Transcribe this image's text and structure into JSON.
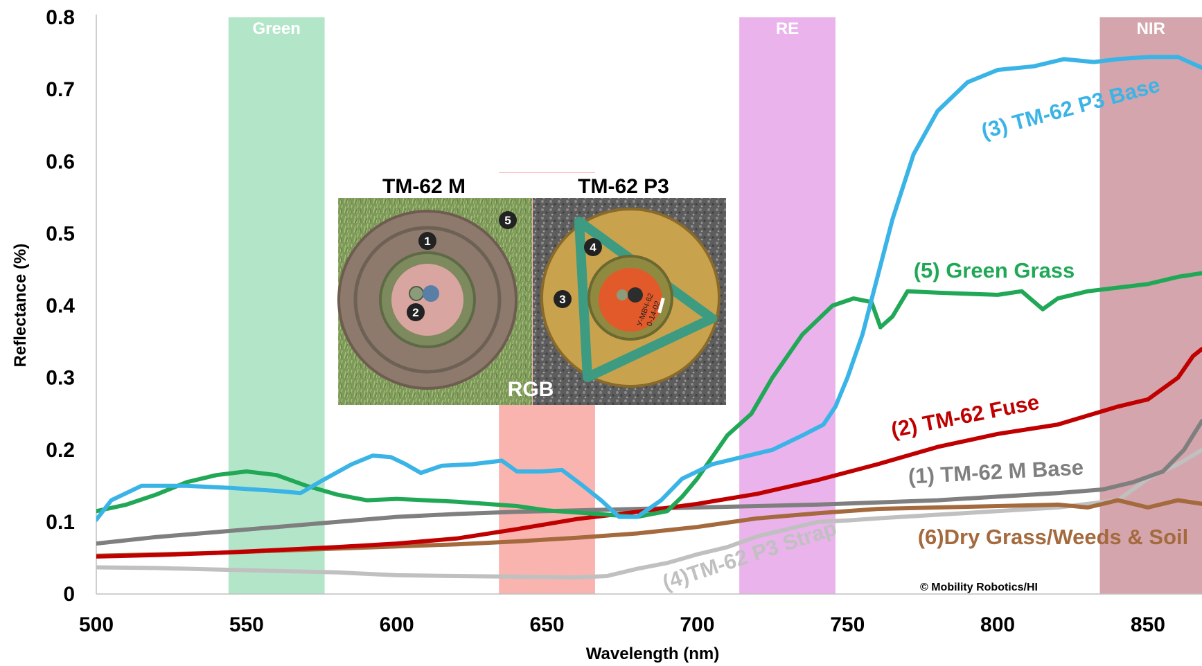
{
  "chart_data": {
    "type": "line",
    "xlabel": "Wavelength (nm)",
    "ylabel": "Reflectance (%)",
    "xlim": [
      500,
      868
    ],
    "ylim": [
      0,
      0.8
    ],
    "x_ticks": [
      500,
      550,
      600,
      650,
      700,
      750,
      800,
      850
    ],
    "y_ticks": [
      0,
      0.1,
      0.2,
      0.3,
      0.4,
      0.5,
      0.6,
      0.7,
      0.8
    ],
    "y_tick_labels": [
      "0",
      "0.1",
      "0.2",
      "0.3",
      "0.4",
      "0.5",
      "0.6",
      "0.7",
      "0.8"
    ],
    "grid": false,
    "bands": [
      {
        "name": "Green",
        "x0": 544,
        "x1": 576,
        "y_top": 0.8,
        "color": "#b3e6c9"
      },
      {
        "name": "Red",
        "x0": 634,
        "x1": 666,
        "y_top": 0.585,
        "color": "#f9b4b0"
      },
      {
        "name": "RE",
        "x0": 714,
        "x1": 746,
        "y_top": 0.8,
        "color": "#eab3ec"
      },
      {
        "name": "NIR",
        "x0": 834,
        "x1": 868,
        "y_top": 0.8,
        "color": "#d4a5ac"
      }
    ],
    "series": [
      {
        "name": "(1) TM-62 M Base",
        "color": "#7f7f7f",
        "x": [
          500,
          520,
          540,
          560,
          580,
          600,
          620,
          640,
          660,
          680,
          700,
          720,
          740,
          760,
          780,
          800,
          820,
          835,
          845,
          855,
          862,
          868
        ],
        "y": [
          0.07,
          0.079,
          0.086,
          0.093,
          0.1,
          0.107,
          0.111,
          0.114,
          0.116,
          0.118,
          0.12,
          0.122,
          0.124,
          0.127,
          0.13,
          0.135,
          0.14,
          0.145,
          0.155,
          0.17,
          0.2,
          0.24
        ]
      },
      {
        "name": "(2) TM-62 Fuse",
        "color": "#c00000",
        "x": [
          500,
          520,
          540,
          560,
          580,
          600,
          620,
          640,
          660,
          680,
          700,
          720,
          740,
          760,
          780,
          800,
          820,
          840,
          850,
          860,
          865,
          868
        ],
        "y": [
          0.052,
          0.054,
          0.057,
          0.061,
          0.065,
          0.07,
          0.077,
          0.09,
          0.104,
          0.114,
          0.125,
          0.139,
          0.158,
          0.18,
          0.204,
          0.222,
          0.235,
          0.26,
          0.27,
          0.3,
          0.33,
          0.34
        ]
      },
      {
        "name": "(3) TM-62 P3 Base",
        "color": "#3ab4e6",
        "x": [
          500,
          505,
          515,
          530,
          545,
          560,
          568,
          575,
          585,
          592,
          598,
          603,
          608,
          615,
          625,
          635,
          640,
          648,
          655,
          662,
          668,
          674,
          680,
          688,
          695,
          705,
          715,
          725,
          735,
          742,
          746,
          750,
          755,
          760,
          765,
          772,
          780,
          790,
          800,
          812,
          822,
          832,
          840,
          850,
          860,
          868
        ],
        "y": [
          0.103,
          0.13,
          0.15,
          0.15,
          0.147,
          0.143,
          0.14,
          0.157,
          0.18,
          0.192,
          0.19,
          0.18,
          0.168,
          0.178,
          0.18,
          0.185,
          0.17,
          0.17,
          0.172,
          0.15,
          0.13,
          0.107,
          0.107,
          0.13,
          0.16,
          0.18,
          0.19,
          0.2,
          0.22,
          0.235,
          0.26,
          0.3,
          0.36,
          0.44,
          0.52,
          0.61,
          0.67,
          0.71,
          0.727,
          0.732,
          0.742,
          0.738,
          0.742,
          0.745,
          0.745,
          0.73
        ]
      },
      {
        "name": "(4)TM-62 P3 Strap",
        "color": "#c0c0c0",
        "x": [
          500,
          520,
          540,
          560,
          580,
          600,
          620,
          640,
          660,
          670,
          680,
          690,
          700,
          710,
          720,
          730,
          740,
          750,
          760,
          780,
          800,
          820,
          840,
          850,
          860,
          868
        ],
        "y": [
          0.037,
          0.036,
          0.034,
          0.032,
          0.03,
          0.026,
          0.025,
          0.024,
          0.023,
          0.025,
          0.035,
          0.043,
          0.055,
          0.065,
          0.08,
          0.09,
          0.1,
          0.102,
          0.105,
          0.11,
          0.115,
          0.12,
          0.13,
          0.16,
          0.18,
          0.2
        ]
      },
      {
        "name": "(5) Green Grass",
        "color": "#21a857",
        "x": [
          500,
          510,
          520,
          530,
          540,
          550,
          560,
          570,
          580,
          590,
          600,
          620,
          640,
          650,
          660,
          680,
          690,
          695,
          700,
          710,
          718,
          725,
          735,
          745,
          752,
          758,
          761,
          765,
          770,
          780,
          800,
          808,
          815,
          820,
          830,
          840,
          850,
          860,
          868
        ],
        "y": [
          0.115,
          0.124,
          0.138,
          0.155,
          0.165,
          0.17,
          0.165,
          0.15,
          0.138,
          0.13,
          0.132,
          0.128,
          0.122,
          0.116,
          0.113,
          0.107,
          0.115,
          0.135,
          0.16,
          0.22,
          0.25,
          0.3,
          0.36,
          0.4,
          0.41,
          0.405,
          0.37,
          0.385,
          0.42,
          0.418,
          0.415,
          0.42,
          0.395,
          0.41,
          0.42,
          0.425,
          0.43,
          0.44,
          0.445
        ]
      },
      {
        "name": "(6)Dry Grass/Weeds & Soil",
        "color": "#a46a3e",
        "x": [
          500,
          520,
          540,
          560,
          580,
          600,
          620,
          640,
          660,
          680,
          700,
          720,
          740,
          750,
          760,
          780,
          800,
          820,
          830,
          840,
          850,
          860,
          868
        ],
        "y": [
          0.053,
          0.055,
          0.057,
          0.06,
          0.063,
          0.066,
          0.069,
          0.073,
          0.078,
          0.084,
          0.093,
          0.105,
          0.112,
          0.115,
          0.118,
          0.12,
          0.122,
          0.124,
          0.12,
          0.13,
          0.12,
          0.13,
          0.125
        ]
      }
    ],
    "annotations": {
      "copyright": "© Mobility Robotics/HI"
    }
  },
  "inset": {
    "left_title": "TM-62 M",
    "right_title": "TM-62 P3",
    "rgb_label": "RGB",
    "markers": [
      "1",
      "2",
      "3",
      "4",
      "5"
    ],
    "plate_text_line1": "У-МВЧ-62",
    "plate_text_line2": "0-14-02"
  }
}
